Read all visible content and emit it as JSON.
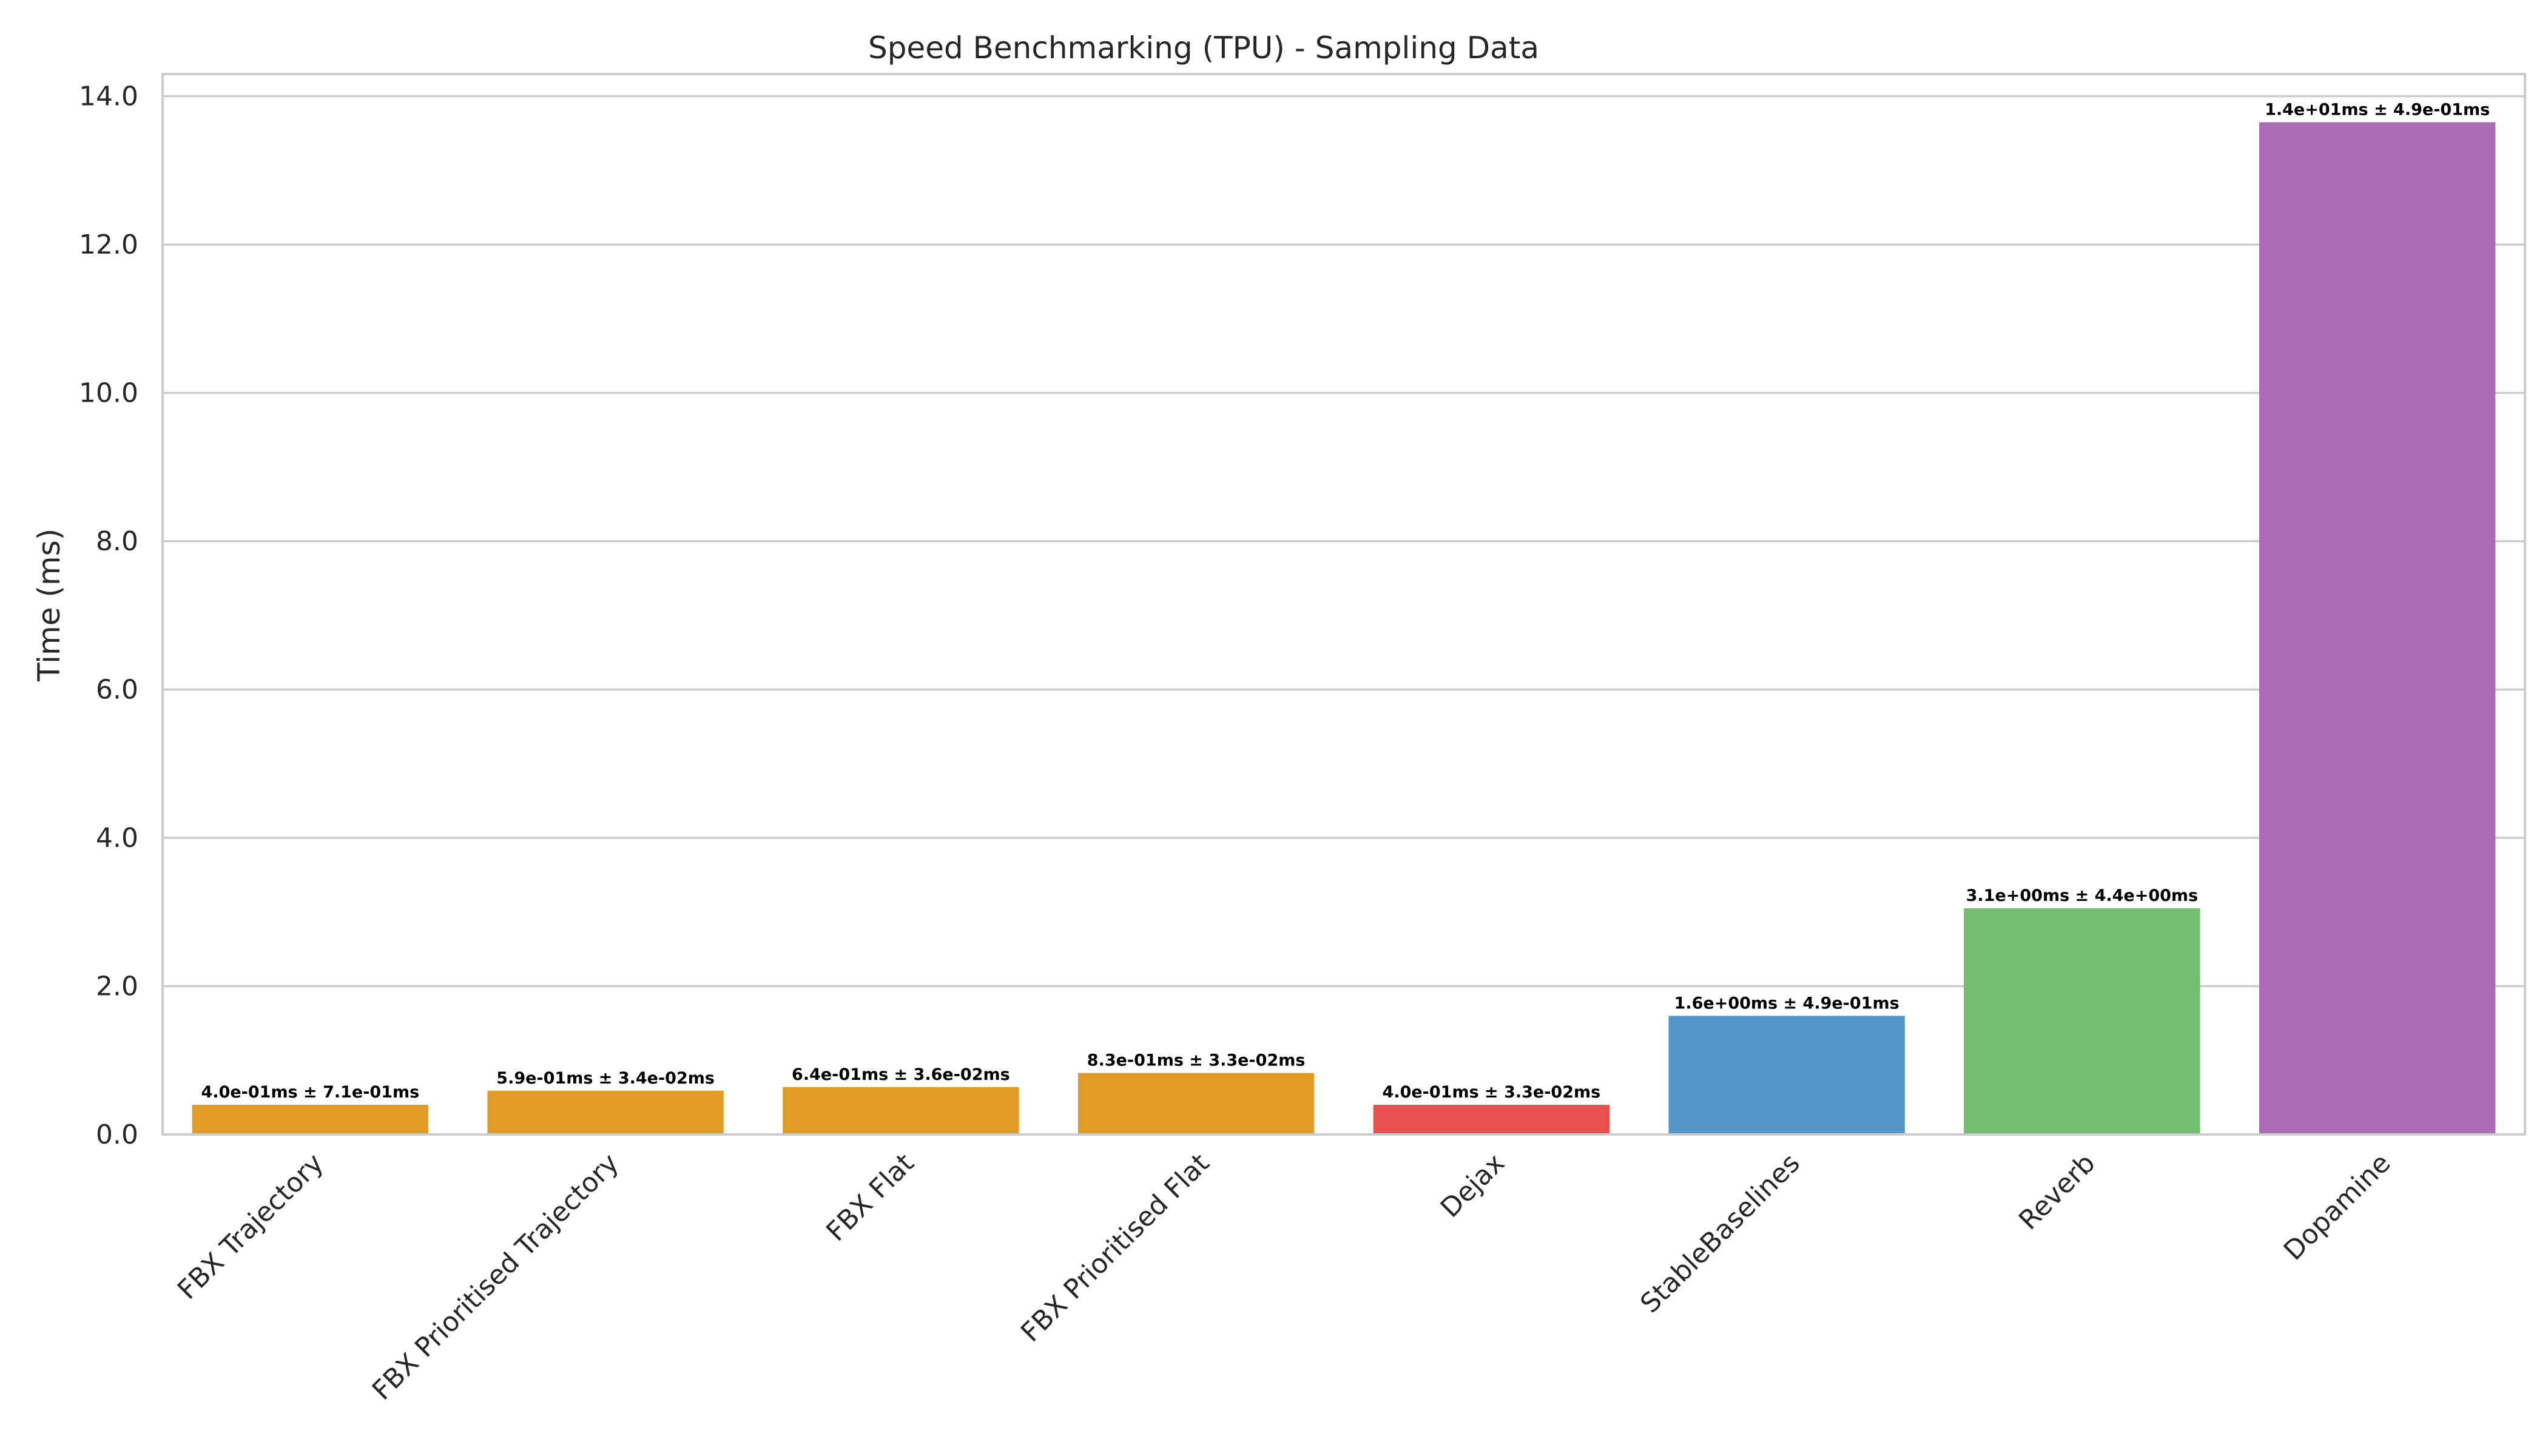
{
  "chart_data": {
    "type": "bar",
    "title": "Speed Benchmarking (TPU) - Sampling Data",
    "xlabel": "",
    "ylabel": "Time (ms)",
    "ylim": [
      0,
      14.3
    ],
    "yticks": [
      0,
      2,
      4,
      6,
      8,
      10,
      12,
      14
    ],
    "ytick_labels": [
      "0.0",
      "2.0",
      "4.0",
      "6.0",
      "8.0",
      "10.0",
      "12.0",
      "14.0"
    ],
    "grid": "horizontal",
    "categories": [
      "FBX Trajectory",
      "FBX Prioritised Trajectory",
      "FBX Flat",
      "FBX Prioritised Flat",
      "Dejax",
      "StableBaselines",
      "Reverb",
      "Dopamine"
    ],
    "values": [
      0.4,
      0.59,
      0.64,
      0.83,
      0.4,
      1.6,
      3.05,
      13.65
    ],
    "bar_labels": [
      "4.0e-01ms ± 7.1e-01ms",
      "5.9e-01ms ± 3.4e-02ms",
      "6.4e-01ms ± 3.6e-02ms",
      "8.3e-01ms ± 3.3e-02ms",
      "4.0e-01ms ± 3.3e-02ms",
      "1.6e+00ms ± 4.9e-01ms",
      "3.1e+00ms ± 4.4e+00ms",
      "1.4e+01ms ± 4.9e-01ms"
    ],
    "colors": [
      "#E09C24",
      "#E09C24",
      "#E09C24",
      "#E09C24",
      "#E8504F",
      "#5496C9",
      "#71BE6E",
      "#A96CB5"
    ]
  }
}
